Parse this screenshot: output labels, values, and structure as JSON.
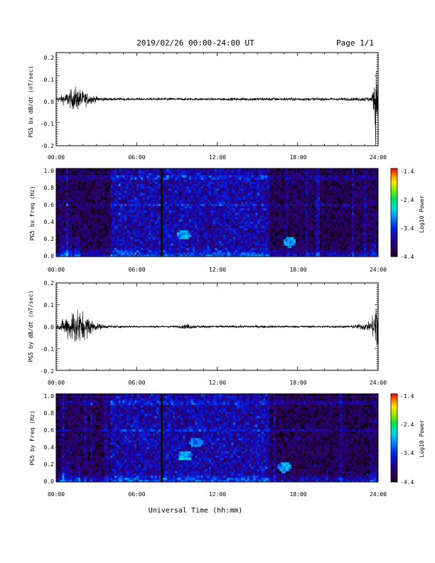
{
  "header": {
    "title": "2019/02/26  00:00-24:00 UT",
    "page": "Page 1/1"
  },
  "xlabel": "Universal Time (hh:mm)",
  "colors": {
    "trace": "#000000",
    "frame": "#000000",
    "background": "#ffffff"
  },
  "chart_data": [
    {
      "type": "line",
      "ylabel": "PG5 bx dB/dt (nT/sec)",
      "xlim": [
        0,
        24
      ],
      "ylim": [
        -0.2,
        0.2
      ],
      "x_tick_labels": [
        "00:00",
        "06:00",
        "12:00",
        "18:00",
        "24:00"
      ],
      "y_tick_labels": [
        "-0.2",
        "-0.1",
        "0.0",
        "0.1",
        "0.2"
      ],
      "envelope": {
        "hours": [
          0.0,
          0.5,
          1.0,
          1.5,
          2.0,
          2.5,
          3.0,
          3.5,
          4.0,
          6.0,
          9.0,
          10.0,
          12.0,
          15.0,
          18.0,
          20.0,
          22.0,
          23.5,
          23.7,
          23.8,
          23.9,
          24.0
        ],
        "amplitude": [
          0.005,
          0.02,
          0.035,
          0.05,
          0.035,
          0.02,
          0.012,
          0.008,
          0.006,
          0.005,
          0.006,
          0.005,
          0.005,
          0.007,
          0.006,
          0.006,
          0.006,
          0.01,
          0.06,
          0.2,
          0.15,
          0.02
        ]
      }
    },
    {
      "type": "heatmap",
      "ylabel": "PG5 bx Freq (Hz)",
      "colorbar_label": "Log10 Power",
      "xlim": [
        0,
        24
      ],
      "ylim": [
        0,
        1.0
      ],
      "x_tick_labels": [
        "00:00",
        "06:00",
        "12:00",
        "18:00",
        "24:00"
      ],
      "y_tick_labels": [
        "0.0",
        "0.2",
        "0.4",
        "0.6",
        "0.8",
        "1.0"
      ],
      "colorbar_ticks": [
        "-1.4",
        "-2.4",
        "-3.4",
        "-4.4"
      ],
      "clim": [
        -4.4,
        -1.4
      ],
      "high_noise_interval_hours": [
        4.0,
        15.8
      ],
      "data_gap_hours": 7.9,
      "strong_burst_hours": [
        0.5,
        1.0,
        1.6,
        23.6
      ],
      "feature_spots": [
        {
          "hour": 9.5,
          "freq": 0.25,
          "level": -3.0
        },
        {
          "hour": 17.4,
          "freq": 0.17,
          "level": -3.0
        }
      ]
    },
    {
      "type": "line",
      "ylabel": "PG5 by dB/dt (nT/sec)",
      "xlim": [
        0,
        24
      ],
      "ylim": [
        -0.2,
        0.2
      ],
      "x_tick_labels": [
        "00:00",
        "06:00",
        "12:00",
        "18:00",
        "24:00"
      ],
      "y_tick_labels": [
        "-0.2",
        "-0.1",
        "0.0",
        "0.1",
        "0.2"
      ],
      "envelope": {
        "hours": [
          0.0,
          0.5,
          1.0,
          1.5,
          2.0,
          2.5,
          3.0,
          3.5,
          4.0,
          6.0,
          9.0,
          9.8,
          10.5,
          12.0,
          15.0,
          18.0,
          20.0,
          22.0,
          23.4,
          23.7,
          23.8,
          23.9,
          24.0
        ],
        "amplitude": [
          0.005,
          0.03,
          0.06,
          0.09,
          0.06,
          0.04,
          0.015,
          0.01,
          0.006,
          0.004,
          0.005,
          0.012,
          0.006,
          0.005,
          0.006,
          0.005,
          0.005,
          0.006,
          0.02,
          0.06,
          0.19,
          0.15,
          0.02
        ]
      }
    },
    {
      "type": "heatmap",
      "ylabel": "PG5 by Freq (Hz)",
      "colorbar_label": "Log10 Power",
      "xlim": [
        0,
        24
      ],
      "ylim": [
        0,
        1.0
      ],
      "x_tick_labels": [
        "00:00",
        "06:00",
        "12:00",
        "18:00",
        "24:00"
      ],
      "y_tick_labels": [
        "0.0",
        "0.2",
        "0.4",
        "0.6",
        "0.8",
        "1.0"
      ],
      "colorbar_ticks": [
        "-1.4",
        "-2.4",
        "-3.4",
        "-4.4"
      ],
      "clim": [
        -4.4,
        -1.4
      ],
      "high_noise_interval_hours": [
        4.0,
        15.8
      ],
      "data_gap_hours": 7.9,
      "strong_burst_hours": [
        0.5,
        1.0,
        1.6,
        23.6
      ],
      "feature_spots": [
        {
          "hour": 9.6,
          "freq": 0.3,
          "level": -2.9
        },
        {
          "hour": 10.4,
          "freq": 0.45,
          "level": -3.1
        },
        {
          "hour": 17.0,
          "freq": 0.17,
          "level": -3.0
        }
      ]
    }
  ]
}
